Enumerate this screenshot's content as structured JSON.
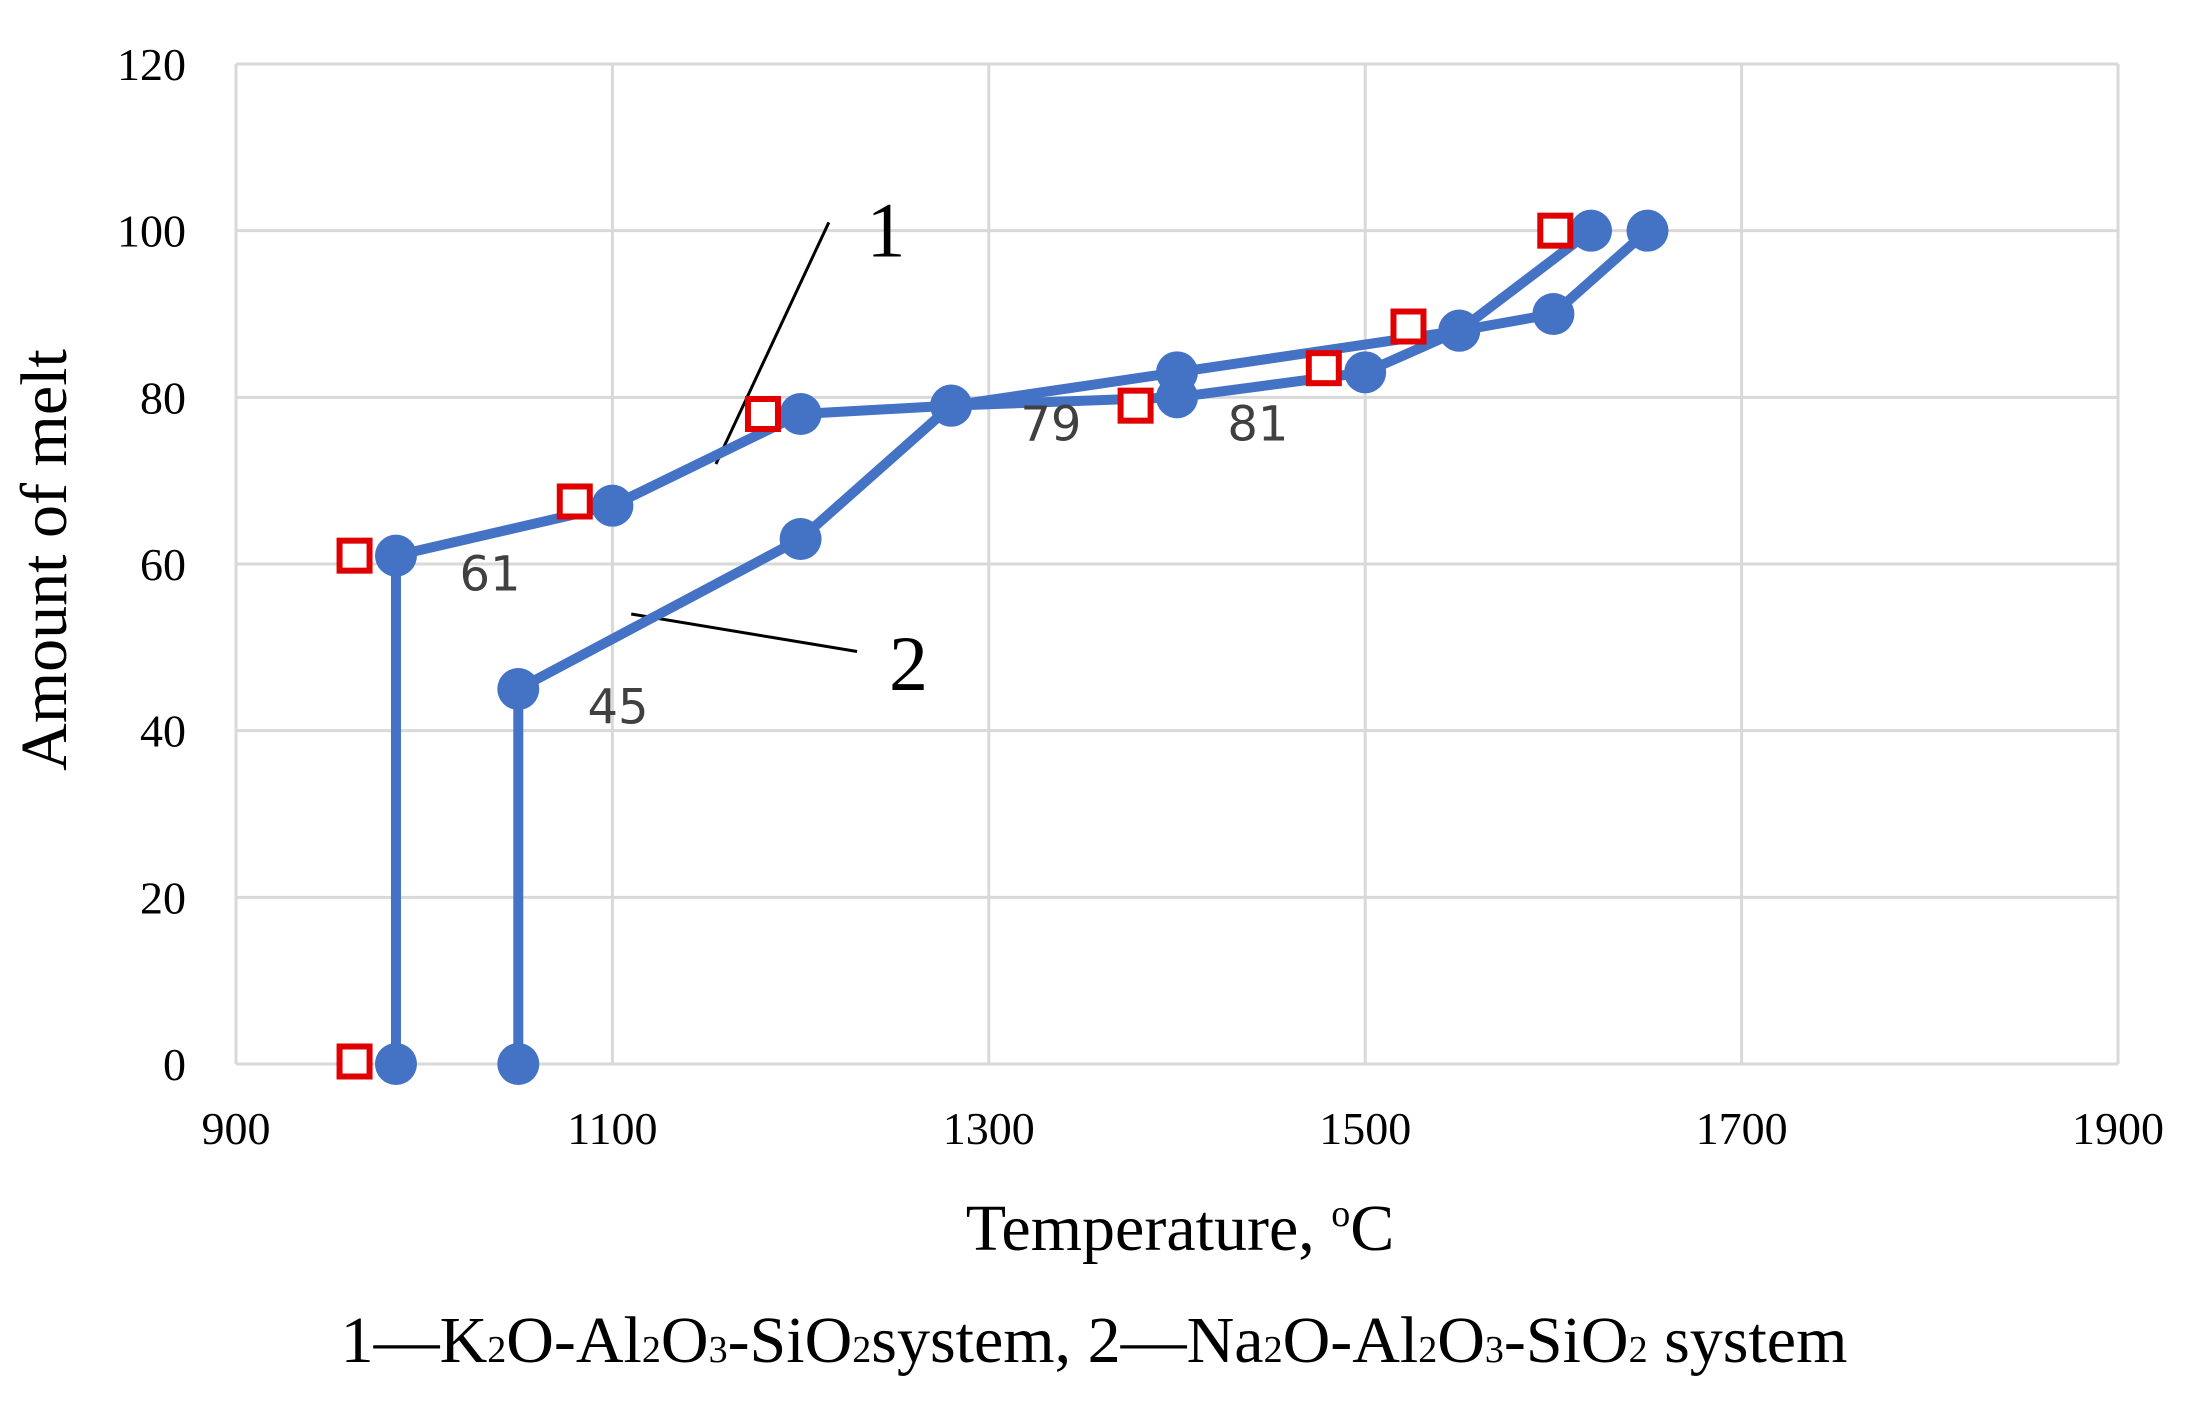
{
  "chart_data": {
    "type": "line",
    "xlabel": "Temperature, ",
    "xlabel_unit_sup": "o",
    "xlabel_unit": "C",
    "ylabel": "Amount of melt",
    "xlim": [
      900,
      1900
    ],
    "ylim": [
      0,
      120
    ],
    "x_ticks": [
      "900",
      "1100",
      "1300",
      "1500",
      "1700",
      "1900"
    ],
    "y_ticks": [
      "0",
      "20",
      "40",
      "60",
      "80",
      "100",
      "120"
    ],
    "grid": true,
    "colors": {
      "line": "#4472C4",
      "marker_square_edge": "#E00000",
      "grid": "#D9D9D9"
    },
    "series": [
      {
        "name": "1",
        "label": "K2O-Al2O3-SiO2 system",
        "x": [
          985,
          985,
          1100,
          1200,
          1280,
          1400,
          1550,
          1620
        ],
        "y": [
          0,
          61,
          67,
          78,
          79,
          83,
          88,
          100
        ]
      },
      {
        "name": "2",
        "label": "Na2O-Al2O3-SiO2 system",
        "x": [
          1050,
          1050,
          1200,
          1280,
          1400,
          1500,
          1550,
          1600,
          1650
        ],
        "y": [
          0,
          45,
          63,
          79,
          80,
          83,
          88,
          90,
          100
        ]
      },
      {
        "name": "squares",
        "x": [
          963,
          963,
          1080,
          1180,
          1378,
          1478,
          1523,
          1601
        ],
        "y": [
          0.3,
          61,
          67.5,
          78,
          79,
          83.5,
          88.5,
          100
        ]
      }
    ],
    "data_labels": [
      {
        "text": "61",
        "x": 1035,
        "y": 59
      },
      {
        "text": "45",
        "x": 1103,
        "y": 43
      },
      {
        "text": "79",
        "x": 1333,
        "y": 77
      },
      {
        "text": "81",
        "x": 1443,
        "y": 77
      }
    ],
    "annotations": [
      {
        "text": "1",
        "x": 1235,
        "y": 100,
        "line_from": [
          1215,
          101
        ],
        "line_to": [
          1155,
          72
        ]
      },
      {
        "text": "2",
        "x": 1247,
        "y": 48,
        "line_from": [
          1230,
          49.5
        ],
        "line_to": [
          1110,
          54
        ]
      }
    ]
  },
  "caption": {
    "p1": "1—K",
    "s1": "2",
    "p2": "O-Al",
    "s2": "2",
    "p3": "O",
    "s3": "3",
    "p4": "-SiO",
    "s4": "2",
    "p5": "system, 2—Na",
    "s5": "2",
    "p6": "O-Al",
    "s6": "2",
    "p7": "O",
    "s7": "3",
    "p8": "-SiO",
    "s8": "2",
    "p9": " system"
  }
}
